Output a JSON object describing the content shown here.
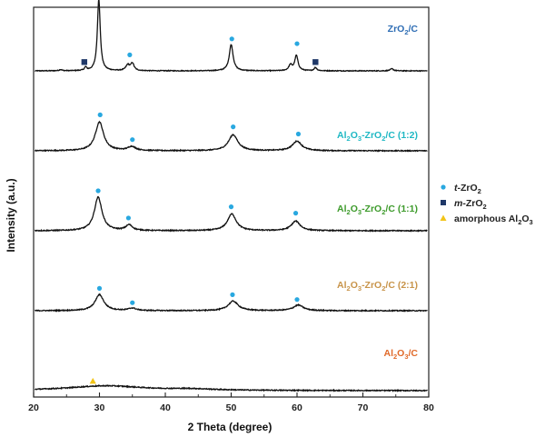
{
  "chart_data": {
    "type": "line",
    "title": "",
    "xlabel": "2 Theta (degree)",
    "ylabel": "Intensity (a.u.)",
    "xlim": [
      20,
      80
    ],
    "x_ticks": [
      "20",
      "30",
      "40",
      "50",
      "60",
      "70",
      "80"
    ],
    "y_ticks": [],
    "grid": false,
    "legend_position": "right",
    "colors": {
      "trace": "#111111",
      "tetragonal_marker": "#29a8e0",
      "monoclinic_marker": "#1f3868",
      "amorphous_marker": "#f2c418"
    },
    "legend": [
      {
        "marker": "circle",
        "color": "#29a8e0",
        "label_prefix": "t",
        "label_rest": "-ZrO",
        "label_sub": "2"
      },
      {
        "marker": "square",
        "color": "#1f3868",
        "label_prefix": "m",
        "label_rest": "-ZrO",
        "label_sub": "2"
      },
      {
        "marker": "triangle",
        "color": "#f2c418",
        "label_prefix": "",
        "label_rest": "amorphous Al",
        "label_sub": "2",
        "label_tail": "O",
        "label_sub2": "3"
      }
    ],
    "series": [
      {
        "name": "ZrO2/C",
        "label_parts": [
          {
            "t": "ZrO"
          },
          {
            "t": "2",
            "sub": true
          },
          {
            "t": "/C"
          }
        ],
        "label_color": "#2e6db4",
        "offset": 4.0,
        "baseline": 0.0,
        "noise": 0.005,
        "peaks": [
          [
            24.1,
            0.015,
            0.25
          ],
          [
            27.9,
            0.04,
            0.2
          ],
          [
            29.9,
            0.9,
            0.26
          ],
          [
            34.3,
            0.07,
            0.35
          ],
          [
            35.0,
            0.09,
            0.3
          ],
          [
            50.0,
            0.33,
            0.35
          ],
          [
            59.0,
            0.07,
            0.3
          ],
          [
            59.9,
            0.19,
            0.3
          ],
          [
            62.8,
            0.04,
            0.25
          ],
          [
            74.4,
            0.025,
            0.3
          ]
        ],
        "markers": [
          {
            "x": 29.9,
            "y": 0.96,
            "type": "t"
          },
          {
            "x": 34.6,
            "y": 0.2,
            "type": "t"
          },
          {
            "x": 50.1,
            "y": 0.4,
            "type": "t"
          },
          {
            "x": 60.0,
            "y": 0.34,
            "type": "t"
          },
          {
            "x": 27.7,
            "y": 0.11,
            "type": "m"
          },
          {
            "x": 62.8,
            "y": 0.11,
            "type": "m"
          }
        ]
      },
      {
        "name": "Al2O3-ZrO2/C (1:2)",
        "label_parts": [
          {
            "t": "Al"
          },
          {
            "t": "2",
            "sub": true
          },
          {
            "t": "O"
          },
          {
            "t": "3",
            "sub": true
          },
          {
            "t": "-ZrO"
          },
          {
            "t": "2",
            "sub": true
          },
          {
            "t": "/C (1:2)"
          }
        ],
        "label_color": "#1fb8c4",
        "offset": 3.0,
        "baseline": 0.0,
        "noise": 0.006,
        "peaks": [
          [
            30.0,
            0.36,
            0.75
          ],
          [
            34.9,
            0.05,
            0.7
          ],
          [
            50.3,
            0.2,
            0.85
          ],
          [
            60.0,
            0.12,
            0.85
          ]
        ],
        "markers": [
          {
            "x": 30.1,
            "y": 0.45,
            "type": "t"
          },
          {
            "x": 35.0,
            "y": 0.14,
            "type": "t"
          },
          {
            "x": 50.3,
            "y": 0.3,
            "type": "t"
          },
          {
            "x": 60.2,
            "y": 0.21,
            "type": "t"
          }
        ]
      },
      {
        "name": "Al2O3-ZrO2/C (1:1)",
        "label_parts": [
          {
            "t": "Al"
          },
          {
            "t": "2",
            "sub": true
          },
          {
            "t": "O"
          },
          {
            "t": "3",
            "sub": true
          },
          {
            "t": "-ZrO"
          },
          {
            "t": "2",
            "sub": true
          },
          {
            "t": "/C (1:1)"
          }
        ],
        "label_color": "#3e9b2c",
        "offset": 2.0,
        "baseline": 0.0,
        "noise": 0.006,
        "peaks": [
          [
            29.8,
            0.42,
            0.7
          ],
          [
            34.5,
            0.07,
            0.6
          ],
          [
            50.1,
            0.21,
            0.8
          ],
          [
            59.8,
            0.12,
            0.8
          ]
        ],
        "markers": [
          {
            "x": 29.8,
            "y": 0.5,
            "type": "t"
          },
          {
            "x": 34.4,
            "y": 0.16,
            "type": "t"
          },
          {
            "x": 50.0,
            "y": 0.3,
            "type": "t"
          },
          {
            "x": 59.8,
            "y": 0.22,
            "type": "t"
          }
        ]
      },
      {
        "name": "Al2O3-ZrO2/C (2:1)",
        "label_parts": [
          {
            "t": "Al"
          },
          {
            "t": "2",
            "sub": true
          },
          {
            "t": "O"
          },
          {
            "t": "3",
            "sub": true
          },
          {
            "t": "-ZrO"
          },
          {
            "t": "2",
            "sub": true
          },
          {
            "t": "/C (2:1)"
          }
        ],
        "label_color": "#c8944a",
        "offset": 1.0,
        "baseline": 0.0,
        "noise": 0.006,
        "peaks": [
          [
            30.0,
            0.2,
            0.8
          ],
          [
            35.0,
            0.03,
            0.7
          ],
          [
            50.3,
            0.12,
            0.9
          ],
          [
            60.2,
            0.07,
            0.9
          ]
        ],
        "markers": [
          {
            "x": 30.0,
            "y": 0.28,
            "type": "t"
          },
          {
            "x": 35.0,
            "y": 0.1,
            "type": "t"
          },
          {
            "x": 50.2,
            "y": 0.2,
            "type": "t"
          },
          {
            "x": 60.0,
            "y": 0.14,
            "type": "t"
          }
        ]
      },
      {
        "name": "Al2O3/C",
        "label_parts": [
          {
            "t": "Al"
          },
          {
            "t": "2",
            "sub": true
          },
          {
            "t": "O"
          },
          {
            "t": "3",
            "sub": true
          },
          {
            "t": "/C"
          }
        ],
        "label_color": "#e06a2a",
        "offset": 0.0,
        "baseline": 0.0,
        "noise": 0.006,
        "peaks": [
          [
            31.0,
            0.06,
            7.0
          ],
          [
            44.0,
            0.015,
            4.0
          ]
        ],
        "markers": [
          {
            "x": 29.0,
            "y": 0.12,
            "type": "a"
          }
        ]
      }
    ]
  }
}
